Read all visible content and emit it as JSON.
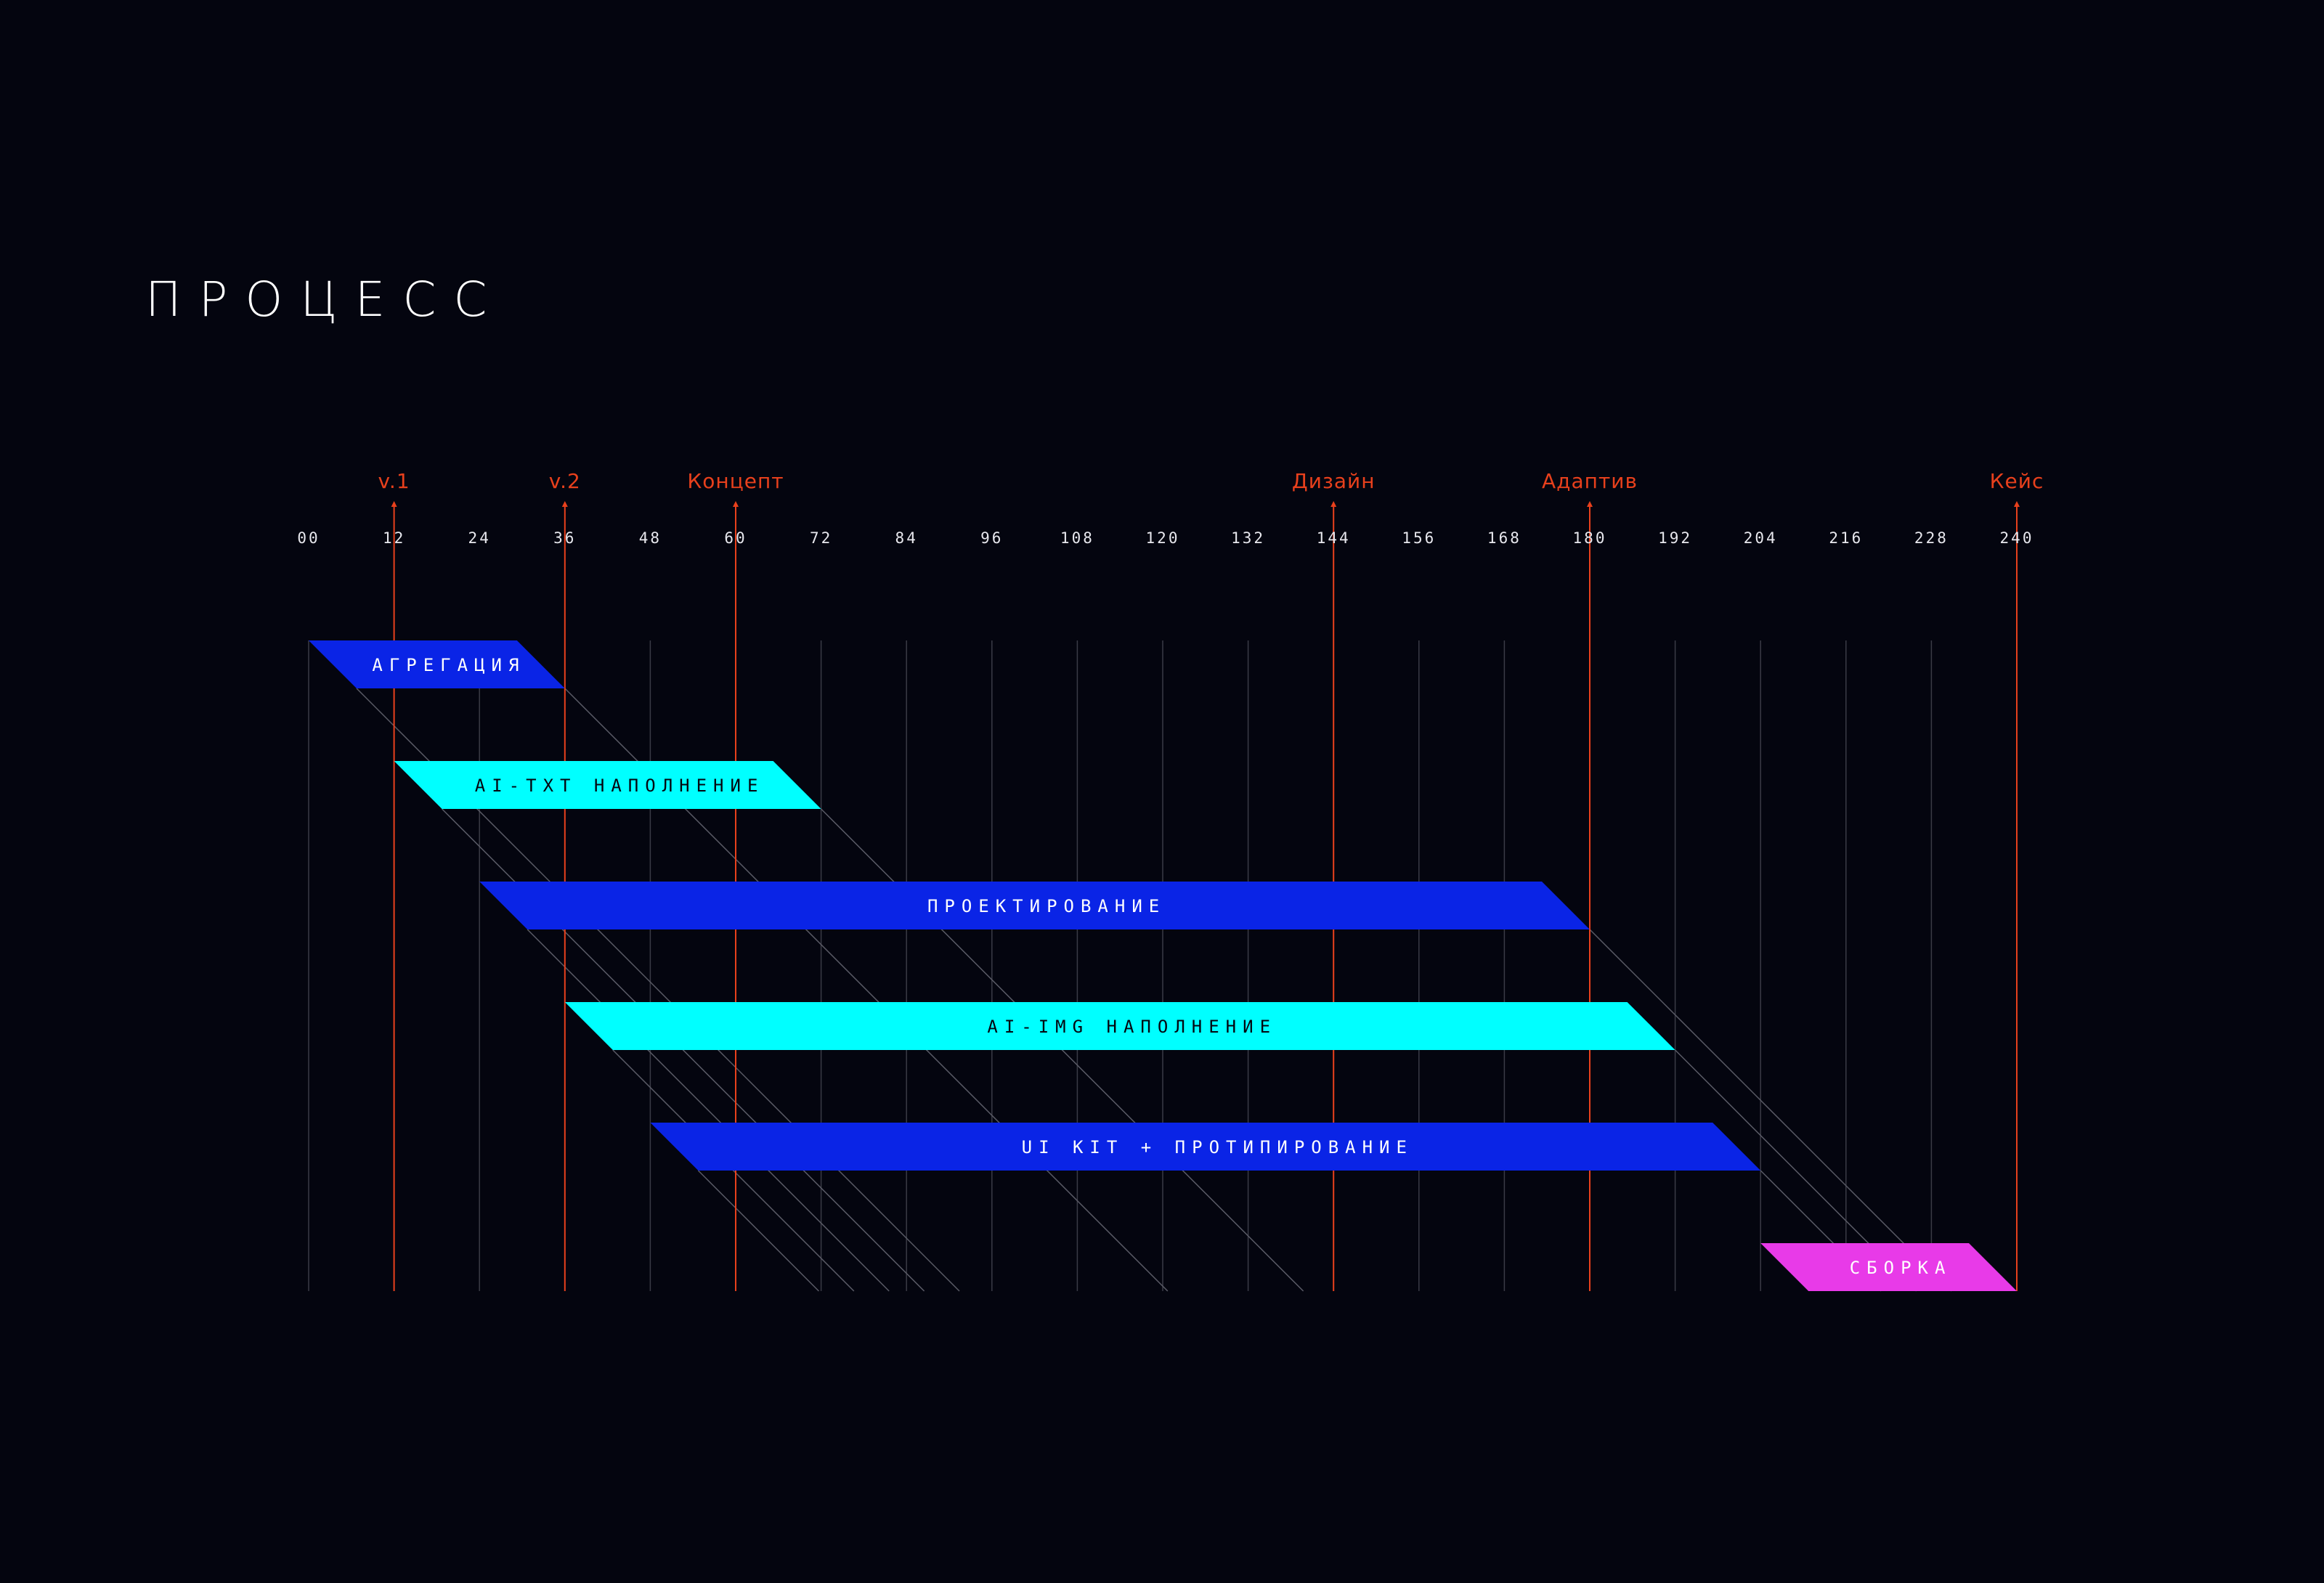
{
  "title": "ПРОЦЕСС",
  "colors": {
    "background": "#04050f",
    "grid": "#3a3b46",
    "milestone": "#e8401c",
    "bar_blue": "#0a24e6",
    "bar_cyan": "#00ffff",
    "bar_magenta": "#e83ae8",
    "text_light": "#ffffff",
    "text_dark": "#04050f"
  },
  "chart_data": {
    "type": "gantt",
    "x_ticks": [
      "00",
      "12",
      "24",
      "36",
      "48",
      "60",
      "72",
      "84",
      "96",
      "108",
      "120",
      "132",
      "144",
      "156",
      "168",
      "180",
      "192",
      "204",
      "216",
      "228",
      "240"
    ],
    "xlim": [
      0,
      240
    ],
    "milestones": [
      {
        "label": "v.1",
        "x": 12
      },
      {
        "label": "v.2",
        "x": 36
      },
      {
        "label": "Концепт",
        "x": 60
      },
      {
        "label": "Дизайн",
        "x": 144
      },
      {
        "label": "Адаптив",
        "x": 180
      },
      {
        "label": "Кейс",
        "x": 240
      }
    ],
    "tasks": [
      {
        "label": "АГРЕГАЦИЯ",
        "start": 0,
        "end": 36,
        "color": "#0a24e6",
        "text_color": "#ffffff"
      },
      {
        "label": "AI-TXT НАПОЛНЕНИЕ",
        "start": 12,
        "end": 72,
        "color": "#00ffff",
        "text_color": "#04050f"
      },
      {
        "label": "ПРОЕКТИРОВАНИЕ",
        "start": 24,
        "end": 180,
        "color": "#0a24e6",
        "text_color": "#ffffff"
      },
      {
        "label": "AI-IMG НАПОЛНЕНИЕ",
        "start": 36,
        "end": 192,
        "color": "#00ffff",
        "text_color": "#04050f"
      },
      {
        "label": "UI KIT + ПРОТИПИРОВАНИЕ",
        "start": 48,
        "end": 204,
        "color": "#0a24e6",
        "text_color": "#ffffff"
      },
      {
        "label": "СБОРКА",
        "start": 204,
        "end": 240,
        "color": "#e83ae8",
        "text_color": "#ffffff"
      }
    ]
  }
}
